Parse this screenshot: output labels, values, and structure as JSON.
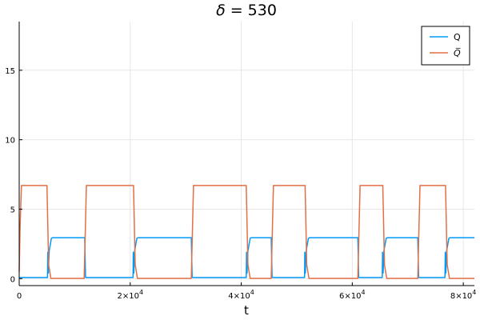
{
  "chart_data": {
    "type": "line",
    "title_prefix": "δ =",
    "title_value": "530",
    "xlabel": "t",
    "ylabel": "",
    "xlim": [
      0,
      82000
    ],
    "ylim": [
      -0.5,
      18.5
    ],
    "x_ticks": [
      {
        "value": 0,
        "label": "0",
        "exp": ""
      },
      {
        "value": 20000,
        "label": "2×10",
        "exp": "4"
      },
      {
        "value": 40000,
        "label": "4×10",
        "exp": "4"
      },
      {
        "value": 60000,
        "label": "6×10",
        "exp": "4"
      },
      {
        "value": 80000,
        "label": "8×10",
        "exp": "4"
      }
    ],
    "y_ticks": [
      {
        "value": 0,
        "label": "0"
      },
      {
        "value": 5,
        "label": "5"
      },
      {
        "value": 10,
        "label": "10"
      },
      {
        "value": 15,
        "label": "15"
      }
    ],
    "grid": true,
    "legend_position": "top-right",
    "series": [
      {
        "name": "Q",
        "color": "#009af9",
        "x": [
          0,
          5100,
          5150,
          5250,
          5400,
          5800,
          6000,
          11800,
          11950,
          12100,
          20500,
          20550,
          20650,
          20800,
          21200,
          21400,
          31000,
          31150,
          31300,
          40900,
          40950,
          41050,
          41200,
          41600,
          41800,
          45400,
          45550,
          45700,
          51400,
          51450,
          51550,
          51700,
          52100,
          52300,
          61000,
          61150,
          61300,
          65400,
          65450,
          65550,
          65700,
          66100,
          66300,
          71800,
          71950,
          72100,
          76700,
          76750,
          76850,
          77000,
          77400,
          77600,
          82000
        ],
        "y": [
          0.08,
          0.08,
          1.9,
          0.4,
          2.0,
          2.9,
          2.95,
          2.95,
          0.1,
          0.08,
          0.08,
          1.9,
          0.4,
          2.0,
          2.9,
          2.95,
          2.95,
          0.1,
          0.08,
          0.08,
          1.9,
          0.4,
          2.0,
          2.9,
          2.95,
          2.95,
          0.1,
          0.08,
          0.08,
          1.9,
          0.4,
          2.0,
          2.9,
          2.95,
          2.95,
          0.1,
          0.08,
          0.08,
          1.9,
          0.4,
          2.0,
          2.9,
          2.95,
          2.95,
          0.1,
          0.08,
          0.08,
          1.9,
          0.4,
          2.0,
          2.9,
          2.95,
          2.95
        ]
      },
      {
        "name": "Q̅",
        "color": "#e26f46",
        "x": [
          0,
          150,
          400,
          5000,
          5300,
          5700,
          11700,
          12100,
          20600,
          20900,
          21300,
          31000,
          31400,
          40900,
          41200,
          41600,
          45400,
          45800,
          51500,
          51800,
          52200,
          61000,
          61400,
          65500,
          65800,
          66200,
          71800,
          72200,
          76800,
          77100,
          77500,
          82000
        ],
        "y": [
          0.5,
          3.5,
          6.7,
          6.7,
          1.0,
          0.02,
          0.02,
          6.7,
          6.7,
          1.0,
          0.02,
          0.02,
          6.7,
          6.7,
          1.0,
          0.02,
          0.02,
          6.7,
          6.7,
          1.0,
          0.02,
          0.02,
          6.7,
          6.7,
          1.0,
          0.02,
          0.02,
          6.7,
          6.7,
          1.0,
          0.02,
          0.02
        ]
      }
    ]
  }
}
